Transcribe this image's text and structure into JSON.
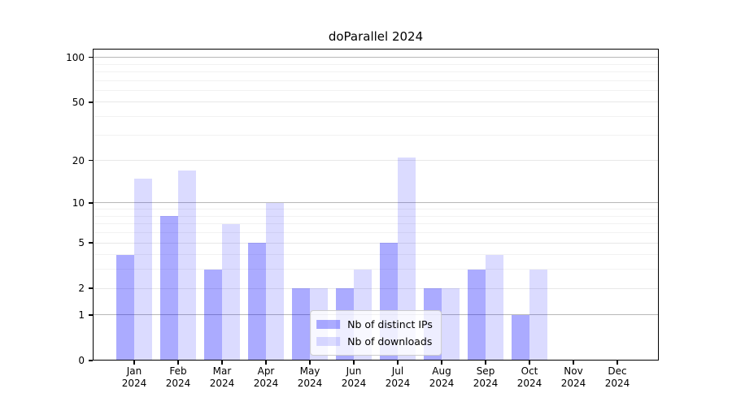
{
  "chart_data": {
    "type": "bar",
    "title": "doParallel 2024",
    "categories": [
      "Jan 2024",
      "Feb 2024",
      "Mar 2024",
      "Apr 2024",
      "May 2024",
      "Jun 2024",
      "Jul 2024",
      "Aug 2024",
      "Sep 2024",
      "Oct 2024",
      "Nov 2024",
      "Dec 2024"
    ],
    "series": [
      {
        "name": "Nb of distinct IPs",
        "color": "rgba(0,0,255,0.33)",
        "values": [
          4,
          8,
          3,
          5,
          2,
          2,
          5,
          2,
          3,
          1,
          0,
          0
        ]
      },
      {
        "name": "Nb of downloads",
        "color": "rgba(0,0,255,0.14)",
        "values": [
          15,
          17,
          7,
          10,
          2,
          3,
          21,
          2,
          4,
          3,
          0,
          0
        ]
      }
    ],
    "y_axis": {
      "scale": "log1p",
      "tick_labels": [
        0,
        1,
        2,
        5,
        10,
        20,
        50,
        100
      ],
      "minor_gridlines": [
        3,
        4,
        6,
        7,
        8,
        9,
        30,
        40,
        60,
        70,
        80,
        90
      ],
      "range": [
        0,
        114
      ]
    },
    "x_axis": {
      "tick_label_lines": 2
    },
    "legend": {
      "position": "lower center"
    },
    "grid": true
  },
  "colors": {
    "decade_gridline": "#b8b8b8",
    "labeled_gridline": "#e8e8e8",
    "minor_gridline": "#f2f2f2",
    "axis": "#000000",
    "background": "#ffffff",
    "legend_border": "#cccccc"
  }
}
